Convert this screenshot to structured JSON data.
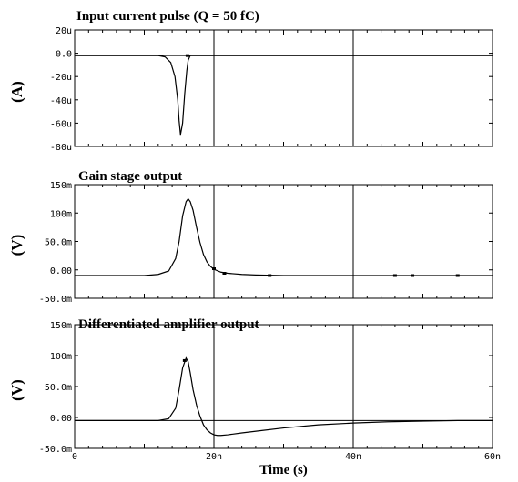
{
  "chart_data": [
    {
      "type": "line",
      "title": "Input current pulse (Q = 50 fC)",
      "ylabel": "(A)",
      "xlabel": "",
      "xlim": [
        0,
        60
      ],
      "ylim": [
        -80,
        20
      ],
      "yticks": [
        20,
        0,
        -20,
        -40,
        -60,
        -80
      ],
      "yticklabels": [
        "20u",
        "0.0",
        "-20u",
        "-40u",
        "-60u",
        "-80u"
      ],
      "xticklabels": [],
      "vlines": [
        20,
        40
      ],
      "zero_line": -2,
      "series": [
        {
          "x": [
            0,
            12.0,
            13.0,
            13.8,
            14.4,
            14.8,
            15.0,
            15.2,
            15.5,
            15.8,
            16.1,
            16.3,
            16.6,
            17,
            20,
            40,
            60
          ],
          "values": [
            -2,
            -2,
            -3.2,
            -8,
            -20,
            -40,
            -58,
            -70,
            -60,
            -35,
            -15,
            -6,
            -2,
            -2,
            -2,
            -2,
            -2
          ]
        }
      ],
      "markers": [
        {
          "x": 16.2,
          "y": -2
        }
      ]
    },
    {
      "type": "line",
      "title": "Gain stage output",
      "ylabel": "(V)",
      "xlabel": "",
      "xlim": [
        0,
        60
      ],
      "ylim": [
        -50,
        150
      ],
      "yticks": [
        150,
        100,
        50,
        0,
        -50
      ],
      "yticklabels": [
        "150m",
        "100m",
        "50.0m",
        "0.00",
        "-50.0m"
      ],
      "xticklabels": [],
      "vlines": [
        20,
        40
      ],
      "series": [
        {
          "x": [
            0,
            10,
            12,
            13.5,
            14.5,
            15.0,
            15.5,
            16.0,
            16.3,
            16.6,
            17.0,
            17.5,
            18.0,
            18.5,
            19.0,
            19.5,
            20,
            21,
            22,
            24,
            26,
            30,
            40,
            60
          ],
          "values": [
            -10,
            -10,
            -8,
            -2,
            20,
            50,
            95,
            120,
            125,
            120,
            105,
            75,
            48,
            27,
            14,
            6,
            1,
            -4,
            -6,
            -8,
            -9,
            -10,
            -10,
            -10
          ]
        }
      ],
      "markers": [
        {
          "x": 20,
          "y": 2
        },
        {
          "x": 21.5,
          "y": -6
        },
        {
          "x": 28,
          "y": -10
        },
        {
          "x": 46,
          "y": -10
        },
        {
          "x": 48.5,
          "y": -10
        },
        {
          "x": 55,
          "y": -10
        }
      ]
    },
    {
      "type": "line",
      "title": "Differentiated amplifier output",
      "ylabel": "(V)",
      "xlabel": "Time (s)",
      "xlim": [
        0,
        60
      ],
      "ylim": [
        -50,
        150
      ],
      "yticks": [
        150,
        100,
        50,
        0,
        -50
      ],
      "yticklabels": [
        "150m",
        "100m",
        "50.0m",
        "0.00",
        "-50.0m"
      ],
      "xticks": [
        0,
        20,
        40,
        60
      ],
      "xticklabels": [
        "0",
        "20n",
        "40n",
        "60n"
      ],
      "vlines": [
        20,
        40
      ],
      "zero_line": -5,
      "series": [
        {
          "x": [
            0,
            12,
            13.5,
            14.5,
            15.0,
            15.5,
            16.0,
            16.3,
            16.6,
            17.0,
            17.5,
            18.0,
            18.5,
            19.0,
            19.5,
            20.0,
            20.5,
            21,
            22,
            24,
            27,
            30,
            35,
            40,
            45,
            50,
            55,
            60
          ],
          "values": [
            -5,
            -5,
            -2,
            15,
            45,
            80,
            96,
            90,
            72,
            45,
            20,
            2,
            -12,
            -20,
            -25,
            -28,
            -29,
            -29,
            -28,
            -25,
            -21,
            -17,
            -12,
            -9,
            -7,
            -6,
            -5,
            -5
          ]
        }
      ],
      "markers": [
        {
          "x": 15.8,
          "y": 92
        }
      ]
    }
  ]
}
